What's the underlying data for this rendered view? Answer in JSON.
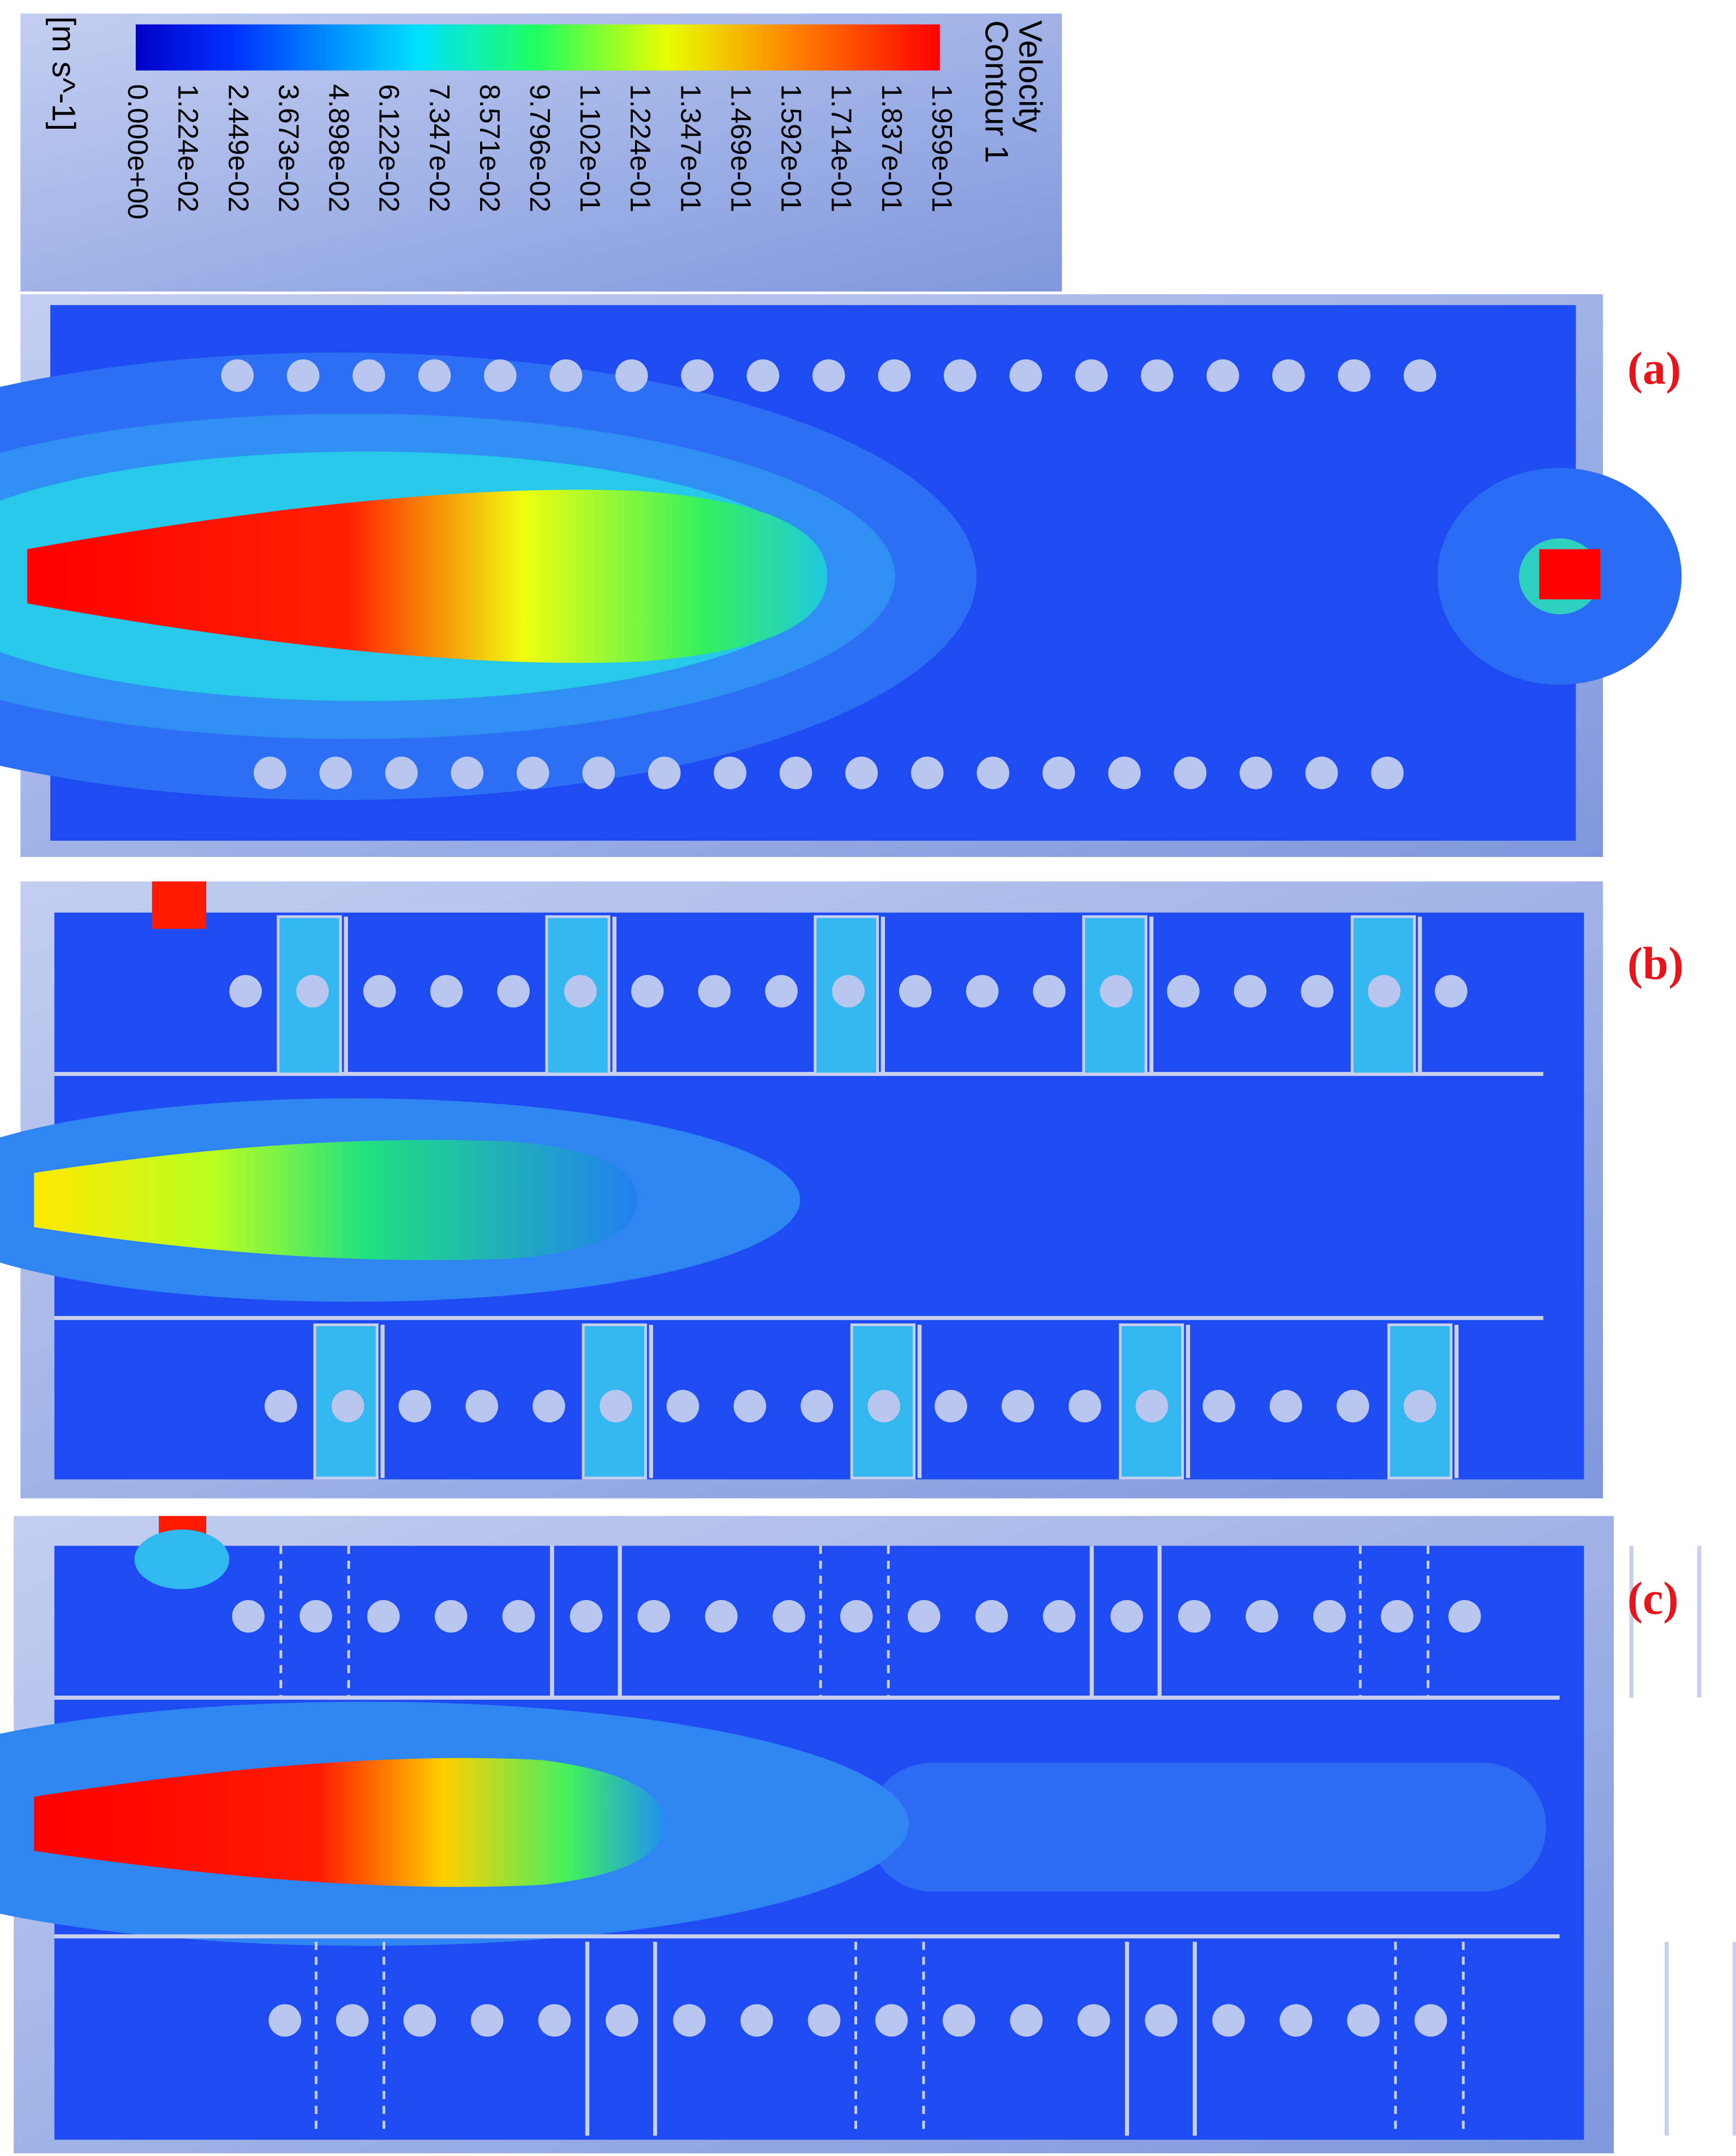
{
  "legend": {
    "title": "Velocity",
    "subtitle": "Contour 1",
    "unit": "[m s^-1]",
    "ticks": [
      "0.000e+00",
      "1.224e-02",
      "2.449e-02",
      "3.673e-02",
      "4.898e-02",
      "6.122e-02",
      "7.347e-02",
      "8.571e-02",
      "9.796e-02",
      "1.102e-01",
      "1.224e-01",
      "1.347e-01",
      "1.469e-01",
      "1.592e-01",
      "1.714e-01",
      "1.837e-01",
      "1.959e-01"
    ]
  },
  "panels": [
    {
      "label": "(a)"
    },
    {
      "label": "(b)"
    },
    {
      "label": "(c)"
    }
  ]
}
